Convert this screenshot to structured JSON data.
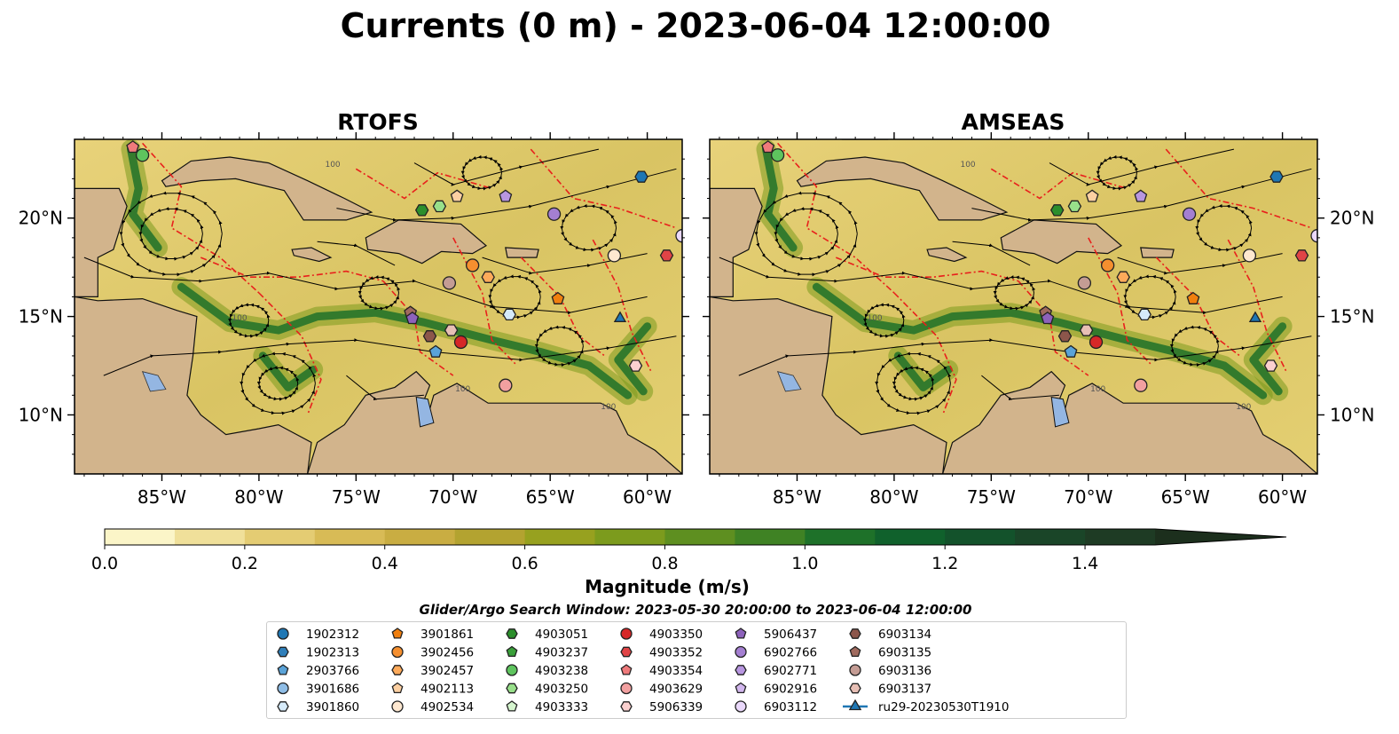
{
  "figure": {
    "title": "Currents (0 m) - 2023-06-04 12:00:00",
    "subtitle": "Glider/Argo Search Window: 2023-05-30 20:00:00 to 2023-06-04 12:00:00"
  },
  "chart_data": [
    {
      "type": "heatmap",
      "panel_title": "RTOFS",
      "x_ticks": [
        "85°W",
        "80°W",
        "75°W",
        "70°W",
        "65°W",
        "60°W"
      ],
      "y_ticks": [
        "20°N",
        "15°N",
        "10°N"
      ],
      "xlim": [
        -89.5,
        -58.2
      ],
      "ylim": [
        7.0,
        24.0
      ],
      "contour_labels": [
        "100",
        "100",
        "100",
        "100"
      ]
    },
    {
      "type": "heatmap",
      "panel_title": "AMSEAS",
      "x_ticks": [
        "85°W",
        "80°W",
        "75°W",
        "70°W",
        "65°W",
        "60°W"
      ],
      "y_ticks": [
        "20°N",
        "15°N",
        "10°N"
      ],
      "xlim": [
        -89.5,
        -58.2
      ],
      "ylim": [
        7.0,
        24.0
      ],
      "contour_labels": [
        "100",
        "100",
        "100",
        "100"
      ]
    }
  ],
  "colorbar": {
    "label": "Magnitude (m/s)",
    "ticks": [
      "0.0",
      "0.2",
      "0.4",
      "0.6",
      "0.8",
      "1.0",
      "1.2",
      "1.4"
    ],
    "min": 0.0,
    "max": 1.5,
    "step": 0.1,
    "colors": [
      "#fbf5c8",
      "#f0e09a",
      "#e4cc73",
      "#d8bb56",
      "#c9ad42",
      "#b3a330",
      "#97a11f",
      "#7c9b1d",
      "#5e8f20",
      "#3f8224",
      "#1e7129",
      "#10612c",
      "#13522b",
      "#1a4528",
      "#1e3b24",
      "#1c2f1d"
    ]
  },
  "legend": [
    {
      "label": "1902312",
      "color": "#1f77b4",
      "marker": "circle"
    },
    {
      "label": "1902313",
      "color": "#2f7fba",
      "marker": "hexagon"
    },
    {
      "label": "2903766",
      "color": "#5aa3d8",
      "marker": "pentagon"
    },
    {
      "label": "3901686",
      "color": "#8fbde6",
      "marker": "circle"
    },
    {
      "label": "3901860",
      "color": "#d6ebfa",
      "marker": "hexagon"
    },
    {
      "label": "3901861",
      "color": "#f07f0e",
      "marker": "pentagon"
    },
    {
      "label": "3902456",
      "color": "#f58f2f",
      "marker": "circle"
    },
    {
      "label": "3902457",
      "color": "#fdaa5a",
      "marker": "hexagon"
    },
    {
      "label": "4902113",
      "color": "#fdd0a2",
      "marker": "pentagon"
    },
    {
      "label": "4902534",
      "color": "#fee8d0",
      "marker": "circle"
    },
    {
      "label": "4903051",
      "color": "#2c8f2c",
      "marker": "hexagon"
    },
    {
      "label": "4903237",
      "color": "#3aa03a",
      "marker": "pentagon"
    },
    {
      "label": "4903238",
      "color": "#5ec45e",
      "marker": "circle"
    },
    {
      "label": "4903250",
      "color": "#98df8a",
      "marker": "hexagon"
    },
    {
      "label": "4903333",
      "color": "#d5f5ce",
      "marker": "pentagon"
    },
    {
      "label": "4903350",
      "color": "#d62728",
      "marker": "circle"
    },
    {
      "label": "4903352",
      "color": "#e04446",
      "marker": "hexagon"
    },
    {
      "label": "4903354",
      "color": "#ef7a7b",
      "marker": "pentagon"
    },
    {
      "label": "4903629",
      "color": "#f2a0a0",
      "marker": "circle"
    },
    {
      "label": "5906339",
      "color": "#fbd0cf",
      "marker": "hexagon"
    },
    {
      "label": "5906437",
      "color": "#8d62bb",
      "marker": "pentagon"
    },
    {
      "label": "6902766",
      "color": "#a47fd1",
      "marker": "circle"
    },
    {
      "label": "6902771",
      "color": "#b896e0",
      "marker": "hexagon"
    },
    {
      "label": "6902916",
      "color": "#d2b7ee",
      "marker": "pentagon"
    },
    {
      "label": "6903112",
      "color": "#ead8fb",
      "marker": "circle"
    },
    {
      "label": "6903134",
      "color": "#8c564b",
      "marker": "hexagon"
    },
    {
      "label": "6903135",
      "color": "#a06a5e",
      "marker": "pentagon"
    },
    {
      "label": "6903136",
      "color": "#c49c94",
      "marker": "circle"
    },
    {
      "label": "6903137",
      "color": "#e7bfb5",
      "marker": "hexagon"
    },
    {
      "label": "ru29-20230530T1910",
      "color": "#1f77b4",
      "marker": "triangle-line"
    }
  ],
  "floats": [
    {
      "lon": -86.0,
      "lat": 23.2,
      "color": "#5ec45e",
      "marker": "circle"
    },
    {
      "lon": -86.5,
      "lat": 23.6,
      "color": "#ef7a7b",
      "marker": "pentagon"
    },
    {
      "lon": -60.3,
      "lat": 22.1,
      "color": "#1f77b4",
      "marker": "hexagon"
    },
    {
      "lon": -67.3,
      "lat": 21.1,
      "color": "#b896e0",
      "marker": "pentagon"
    },
    {
      "lon": -70.7,
      "lat": 20.6,
      "color": "#98df8a",
      "marker": "hexagon"
    },
    {
      "lon": -71.6,
      "lat": 20.4,
      "color": "#2c8f2c",
      "marker": "hexagon"
    },
    {
      "lon": -69.8,
      "lat": 21.1,
      "color": "#fdd0a2",
      "marker": "pentagon"
    },
    {
      "lon": -64.8,
      "lat": 20.2,
      "color": "#a47fd1",
      "marker": "circle"
    },
    {
      "lon": -58.2,
      "lat": 19.1,
      "color": "#ead8fb",
      "marker": "circle"
    },
    {
      "lon": -59.0,
      "lat": 18.1,
      "color": "#e04446",
      "marker": "hexagon"
    },
    {
      "lon": -61.7,
      "lat": 18.1,
      "color": "#fee8d0",
      "marker": "circle"
    },
    {
      "lon": -69.0,
      "lat": 17.6,
      "color": "#f58f2f",
      "marker": "circle"
    },
    {
      "lon": -68.2,
      "lat": 17.0,
      "color": "#fdaa5a",
      "marker": "hexagon"
    },
    {
      "lon": -70.2,
      "lat": 16.7,
      "color": "#c49c94",
      "marker": "circle"
    },
    {
      "lon": -64.6,
      "lat": 15.9,
      "color": "#f07f0e",
      "marker": "pentagon"
    },
    {
      "lon": -72.2,
      "lat": 15.2,
      "color": "#a06a5e",
      "marker": "pentagon"
    },
    {
      "lon": -72.1,
      "lat": 14.9,
      "color": "#8d62bb",
      "marker": "pentagon"
    },
    {
      "lon": -67.1,
      "lat": 15.1,
      "color": "#d6ebfa",
      "marker": "hexagon"
    },
    {
      "lon": -71.2,
      "lat": 14.0,
      "color": "#8c564b",
      "marker": "hexagon"
    },
    {
      "lon": -70.1,
      "lat": 14.3,
      "color": "#e7bfb5",
      "marker": "hexagon"
    },
    {
      "lon": -69.6,
      "lat": 13.7,
      "color": "#d62728",
      "marker": "circle"
    },
    {
      "lon": -70.9,
      "lat": 13.2,
      "color": "#5aa3d8",
      "marker": "pentagon"
    },
    {
      "lon": -61.4,
      "lat": 14.9,
      "color": "#1f77b4",
      "marker": "triangle"
    },
    {
      "lon": -60.6,
      "lat": 12.5,
      "color": "#fbd0cf",
      "marker": "hexagon"
    },
    {
      "lon": -67.3,
      "lat": 11.5,
      "color": "#f2a0a0",
      "marker": "circle"
    }
  ]
}
